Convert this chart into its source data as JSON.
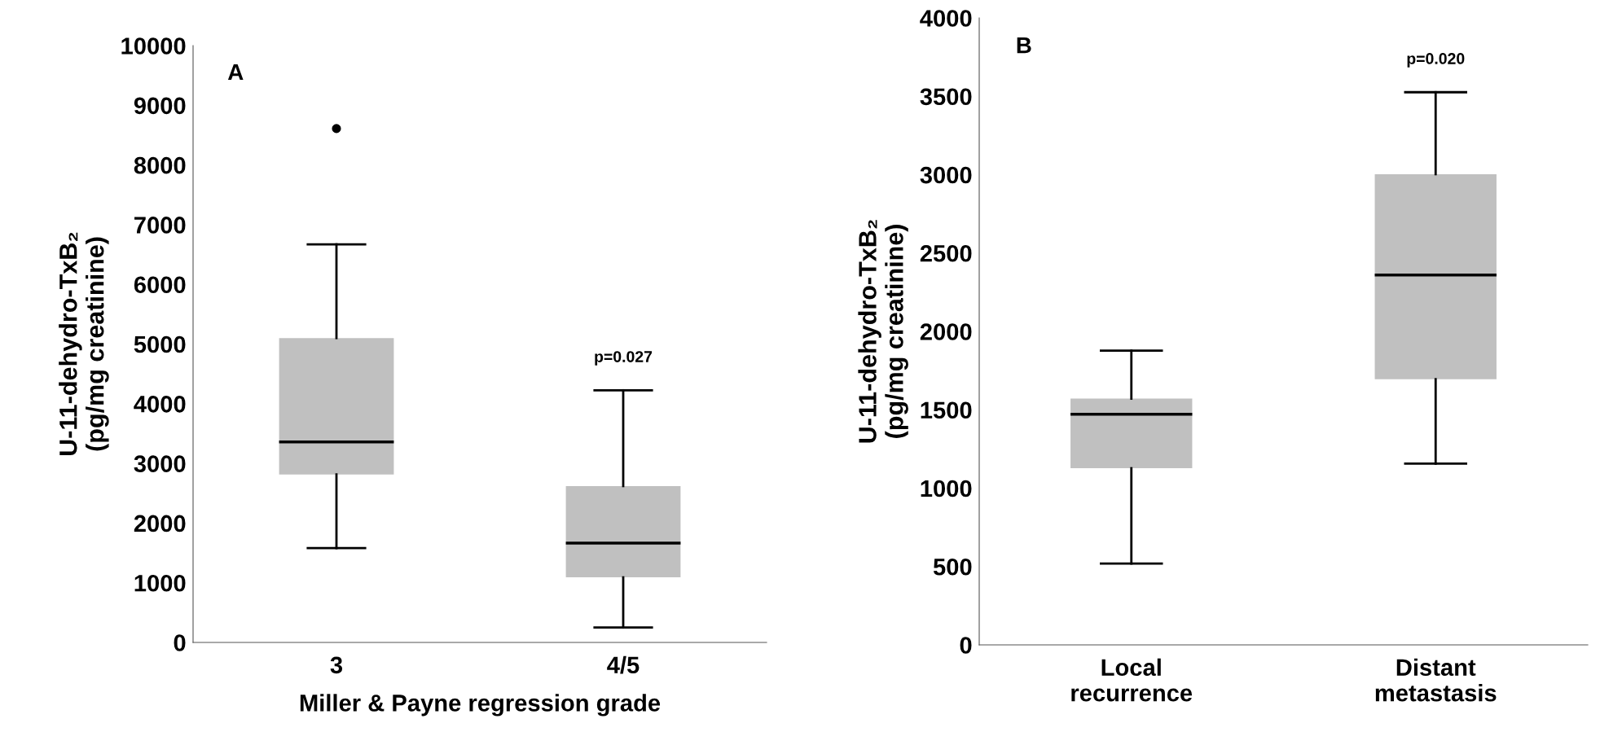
{
  "chart_data": [
    {
      "type": "box",
      "title": "A",
      "ylabel": "U-11-dehydro-TxB₂\n(pg/mg creatinine)",
      "xlabel": "Miller & Payne regression grade",
      "categories": [
        "3",
        "4/5"
      ],
      "color": "#c0c0c0",
      "boxes": [
        {
          "low": 1580,
          "q1": 2815,
          "median": 3360,
          "q3": 5100,
          "high": 6670,
          "outliers": [
            8610
          ]
        },
        {
          "low": 250,
          "q1": 1090,
          "median": 1665,
          "q3": 2620,
          "high": 4225
        }
      ],
      "ylim": [
        0,
        10000
      ],
      "yticks": [
        0,
        1000,
        2000,
        3000,
        4000,
        5000,
        6000,
        7000,
        8000,
        9000,
        10000
      ],
      "annotations": [
        "p=0.027"
      ]
    },
    {
      "type": "box",
      "title": "B",
      "ylabel": "U-11-dehydro-TxB₂\n(pg/mg creatinine)",
      "categories": [
        "Local\nrecurrence",
        "Distant\nmetastasis"
      ],
      "color": "#c0c0c0",
      "boxes": [
        {
          "low": 519,
          "q1": 1127,
          "median": 1471,
          "q3": 1571,
          "high": 1877
        },
        {
          "low": 1156,
          "q1": 1695,
          "median": 2360,
          "q3": 3003,
          "high": 3526
        }
      ],
      "ylim": [
        0,
        4000
      ],
      "yticks": [
        0,
        500,
        1000,
        1500,
        2000,
        2500,
        3000,
        3500,
        4000
      ],
      "annotations": [
        "p=0.020"
      ]
    }
  ]
}
